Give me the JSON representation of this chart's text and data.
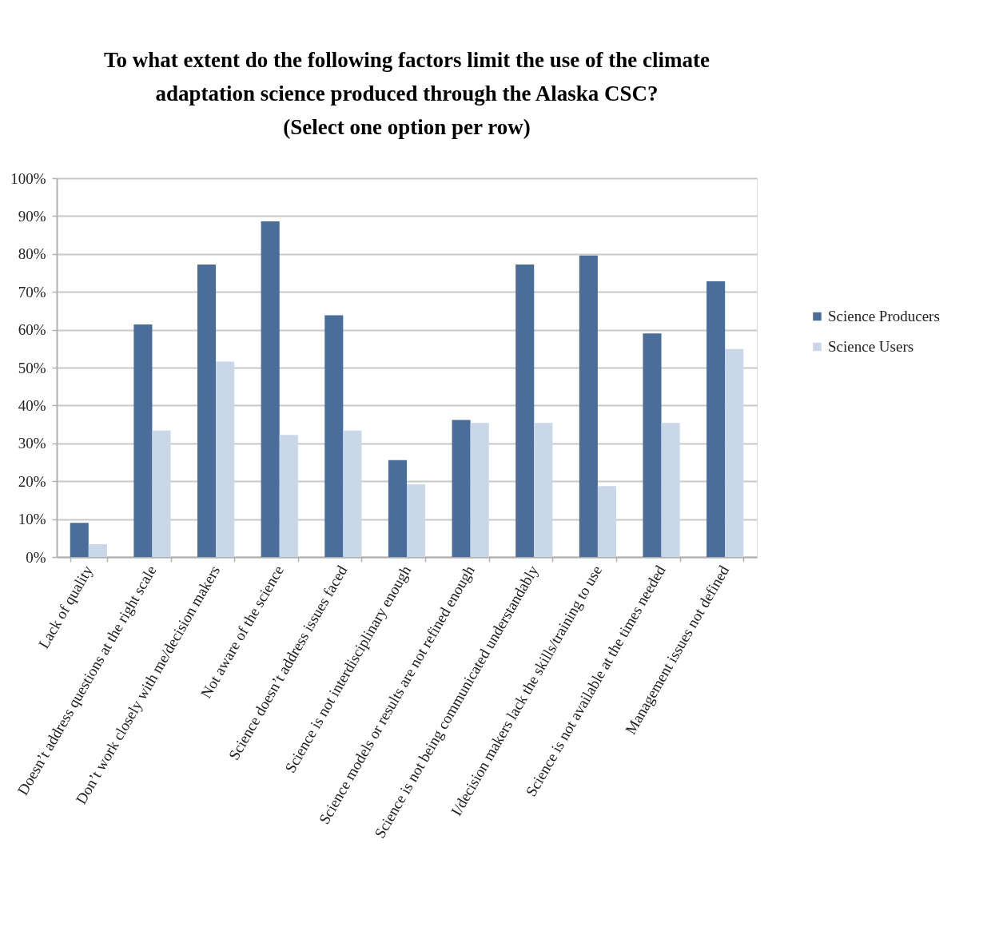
{
  "chart_data": {
    "type": "bar",
    "title": "To what extent do the following factors limit the use of the climate\nadaptation science produced through the Alaska CSC?\n(Select one option per row)",
    "categories": [
      "Lack of quality",
      "Doesn’t address questions at the right scale",
      "Don’t work closely with me/decision makers",
      "Not aware of the science",
      "Science doesn’t address issues faced",
      "Science is not interdisciplinary enough",
      "Science models or results are not refined enough",
      "Science is not being communicated understandably",
      "I/decision makers lack the skills/training to use",
      "Science is not available at the times needed",
      "Management issues not defined"
    ],
    "series": [
      {
        "name": "Science Producers",
        "color": "#4a6d9a",
        "values": [
          9.0,
          61.4,
          77.2,
          88.6,
          63.8,
          25.6,
          36.2,
          77.2,
          79.6,
          59.0,
          72.8
        ]
      },
      {
        "name": "Science Users",
        "color": "#c9d7e6",
        "values": [
          3.4,
          33.4,
          51.6,
          32.2,
          33.4,
          19.2,
          35.4,
          35.4,
          18.7,
          35.4,
          54.9
        ]
      }
    ],
    "ylim": [
      0,
      100
    ],
    "yticks": [
      {
        "value": 0,
        "label": "0%"
      },
      {
        "value": 10,
        "label": "10%"
      },
      {
        "value": 20,
        "label": "20%"
      },
      {
        "value": 30,
        "label": "30%"
      },
      {
        "value": 40,
        "label": "40%"
      },
      {
        "value": 50,
        "label": "50%"
      },
      {
        "value": 60,
        "label": "60%"
      },
      {
        "value": 70,
        "label": "70%"
      },
      {
        "value": 80,
        "label": "80%"
      },
      {
        "value": 90,
        "label": "90%"
      },
      {
        "value": 100,
        "label": "100%"
      }
    ],
    "grid": "y",
    "legend": "right"
  }
}
